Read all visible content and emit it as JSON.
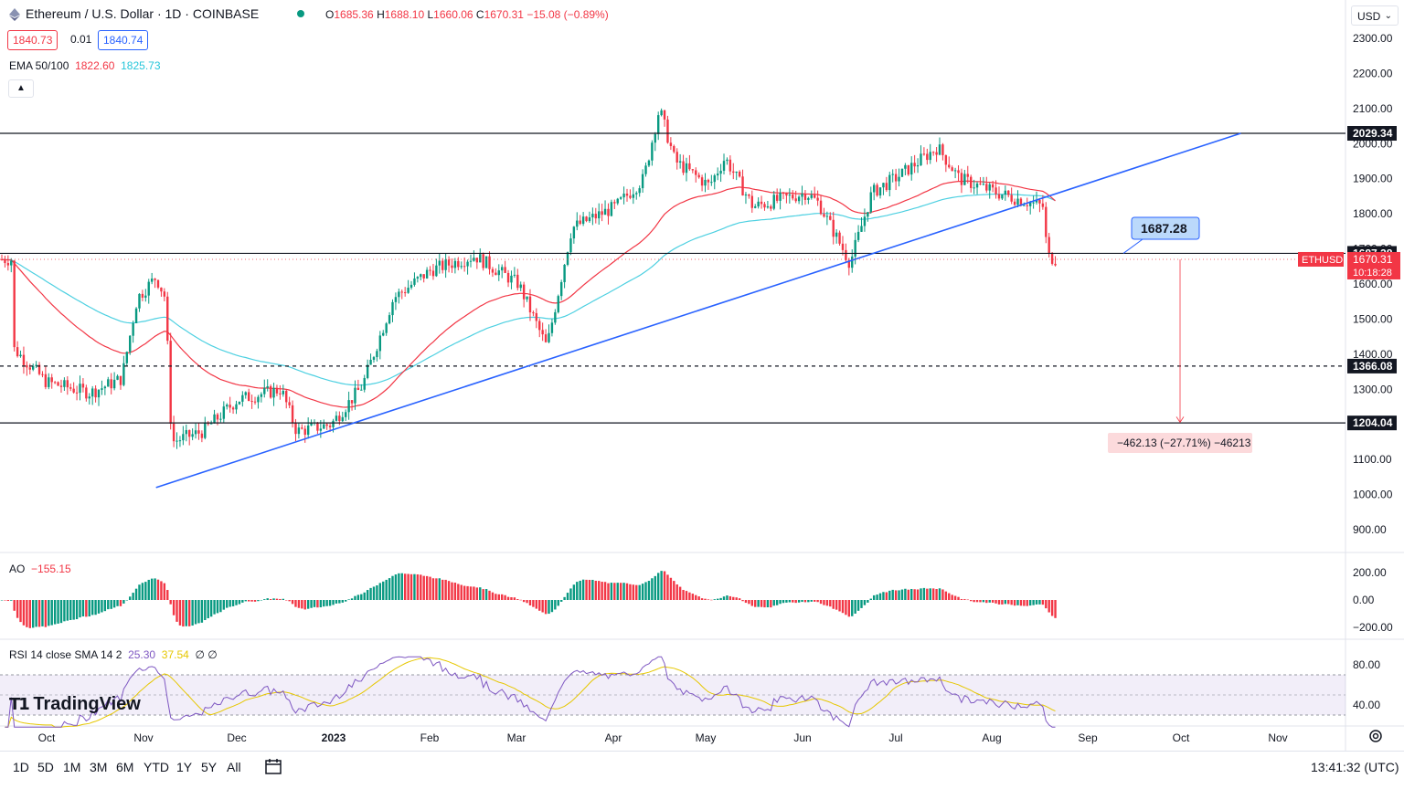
{
  "header": {
    "title": "Ethereum / U.S. Dollar · 1D · COINBASE",
    "ohlc": [
      {
        "k": "O",
        "v": "1685.36"
      },
      {
        "k": "H",
        "v": "1688.10"
      },
      {
        "k": "L",
        "v": "1660.06"
      },
      {
        "k": "C",
        "v": "1670.31"
      },
      {
        "k": "",
        "v": "−15.08 (−0.89%)"
      }
    ],
    "bid": "1840.73",
    "spread": "0.01",
    "ask": "1840.74",
    "ema_label": "EMA 50/100",
    "ema50": "1822.60",
    "ema100": "1825.73",
    "collapse_icon": "chevron-up-icon"
  },
  "currency": "USD",
  "colors": {
    "up": "#089981",
    "down": "#f23645",
    "ema50": "#f23645",
    "ema100": "#4dd0e1",
    "trend": "#2962ff",
    "rsi": "#7e57c2",
    "rsi_ma": "#e6c700"
  },
  "price_axis": {
    "ticks": [
      "2300.00",
      "2200.00",
      "2100.00",
      "2000.00",
      "1900.00",
      "1800.00",
      "1700.00",
      "1600.00",
      "1500.00",
      "1400.00",
      "1300.00",
      "1200.00",
      "1100.00",
      "1000.00",
      "900.00"
    ],
    "tick_values": [
      2300,
      2200,
      2100,
      2000,
      1900,
      1800,
      1700,
      1600,
      1500,
      1400,
      1300,
      1200,
      1100,
      1000,
      900
    ],
    "labels": [
      {
        "text": "2029.34",
        "value": 2029.34,
        "style": "black"
      },
      {
        "text": "1687.28",
        "value": 1687.28,
        "style": "black"
      },
      {
        "text": "1366.08",
        "value": 1366.08,
        "style": "black"
      },
      {
        "text": "1204.04",
        "value": 1204.04,
        "style": "black"
      }
    ],
    "last": {
      "symbol": "ETHUSD",
      "price": "1670.31",
      "countdown": "10:18:28"
    }
  },
  "time_axis": {
    "labels": [
      "Oct",
      "Nov",
      "Dec",
      "2023",
      "Feb",
      "Mar",
      "Apr",
      "May",
      "Jun",
      "Jul",
      "Aug",
      "Sep",
      "Oct",
      "Nov"
    ],
    "bold": [
      false,
      false,
      false,
      true,
      false,
      false,
      false,
      false,
      false,
      false,
      false,
      false,
      false,
      false
    ]
  },
  "chart_data": {
    "type": "candlestick",
    "symbol": "ETHUSD",
    "ohlc_points": [
      {
        "x": "2022-09-20",
        "o": 1330,
        "h": 1380,
        "l": 1280,
        "c": 1300
      },
      {
        "x": "2022-10-05",
        "o": 1350,
        "h": 1380,
        "l": 1270,
        "c": 1290
      },
      {
        "x": "2022-10-15",
        "o": 1300,
        "h": 1310,
        "l": 1260,
        "c": 1280
      },
      {
        "x": "2022-10-26",
        "o": 1340,
        "h": 1600,
        "l": 1320,
        "c": 1540
      },
      {
        "x": "2022-11-05",
        "o": 1620,
        "h": 1680,
        "l": 1580,
        "c": 1610
      },
      {
        "x": "2022-11-09",
        "o": 1600,
        "h": 1610,
        "l": 1100,
        "c": 1110
      },
      {
        "x": "2022-11-20",
        "o": 1220,
        "h": 1240,
        "l": 1150,
        "c": 1170
      },
      {
        "x": "2022-11-30",
        "o": 1220,
        "h": 1300,
        "l": 1200,
        "c": 1290
      },
      {
        "x": "2022-12-15",
        "o": 1330,
        "h": 1350,
        "l": 1250,
        "c": 1260
      },
      {
        "x": "2022-12-31",
        "o": 1200,
        "h": 1210,
        "l": 1190,
        "c": 1200
      },
      {
        "x": "2023-01-14",
        "o": 1400,
        "h": 1560,
        "l": 1390,
        "c": 1550
      },
      {
        "x": "2023-02-01",
        "o": 1580,
        "h": 1710,
        "l": 1560,
        "c": 1640
      },
      {
        "x": "2023-02-15",
        "o": 1550,
        "h": 1700,
        "l": 1540,
        "c": 1690
      },
      {
        "x": "2023-03-09",
        "o": 1530,
        "h": 1540,
        "l": 1370,
        "c": 1400
      },
      {
        "x": "2023-03-18",
        "o": 1660,
        "h": 1810,
        "l": 1650,
        "c": 1800
      },
      {
        "x": "2023-04-05",
        "o": 1860,
        "h": 1950,
        "l": 1850,
        "c": 1900
      },
      {
        "x": "2023-04-16",
        "o": 2090,
        "h": 2140,
        "l": 2060,
        "c": 2100
      },
      {
        "x": "2023-04-20",
        "o": 1950,
        "h": 2000,
        "l": 1920,
        "c": 1930
      },
      {
        "x": "2023-05-06",
        "o": 1990,
        "h": 2010,
        "l": 1880,
        "c": 1890
      },
      {
        "x": "2023-05-25",
        "o": 1800,
        "h": 1850,
        "l": 1760,
        "c": 1820
      },
      {
        "x": "2023-06-15",
        "o": 1640,
        "h": 1760,
        "l": 1620,
        "c": 1660
      },
      {
        "x": "2023-07-05",
        "o": 1940,
        "h": 1960,
        "l": 1900,
        "c": 1920
      },
      {
        "x": "2023-07-14",
        "o": 2000,
        "h": 2030,
        "l": 1860,
        "c": 1900
      },
      {
        "x": "2023-08-10",
        "o": 1850,
        "h": 1870,
        "l": 1820,
        "c": 1840
      },
      {
        "x": "2023-08-17",
        "o": 1810,
        "h": 1820,
        "l": 1540,
        "c": 1690
      },
      {
        "x": "2023-08-20",
        "o": 1685.36,
        "h": 1688.1,
        "l": 1660.06,
        "c": 1670.31
      }
    ],
    "levels": [
      2029.34,
      1687.28,
      1366.08,
      1204.04
    ],
    "trendline": [
      {
        "x": "2022-11-05",
        "y": 1020
      },
      {
        "x": "2023-10-18",
        "y": 2029.34
      }
    ],
    "ylim": [
      870,
      2340
    ],
    "annotations": {
      "callout": "1687.28",
      "measure": "−462.13 (−27.71%) −46213"
    }
  },
  "ao": {
    "label": "AO",
    "value": "−155.15",
    "ticks": [
      "200.00",
      "0.00",
      "−200.00"
    ],
    "tick_values": [
      200,
      0,
      -200
    ],
    "ylim": [
      -300,
      300
    ]
  },
  "rsi": {
    "label": "RSI 14 close SMA 14 2",
    "rsi_value": "25.30",
    "ma_value": "37.54",
    "extra": "∅ ∅",
    "ticks": [
      "80.00",
      "40.00"
    ],
    "tick_values": [
      80,
      40
    ],
    "ylim": [
      15,
      90
    ]
  },
  "logo": "TradingView",
  "bottombar": {
    "timeframes": [
      "1D",
      "5D",
      "1M",
      "3M",
      "6M",
      "YTD",
      "1Y",
      "5Y",
      "All"
    ],
    "calendar_icon": "calendar-range-icon",
    "clock": "13:41:32 (UTC)"
  },
  "settings_icon": "gear-icon"
}
